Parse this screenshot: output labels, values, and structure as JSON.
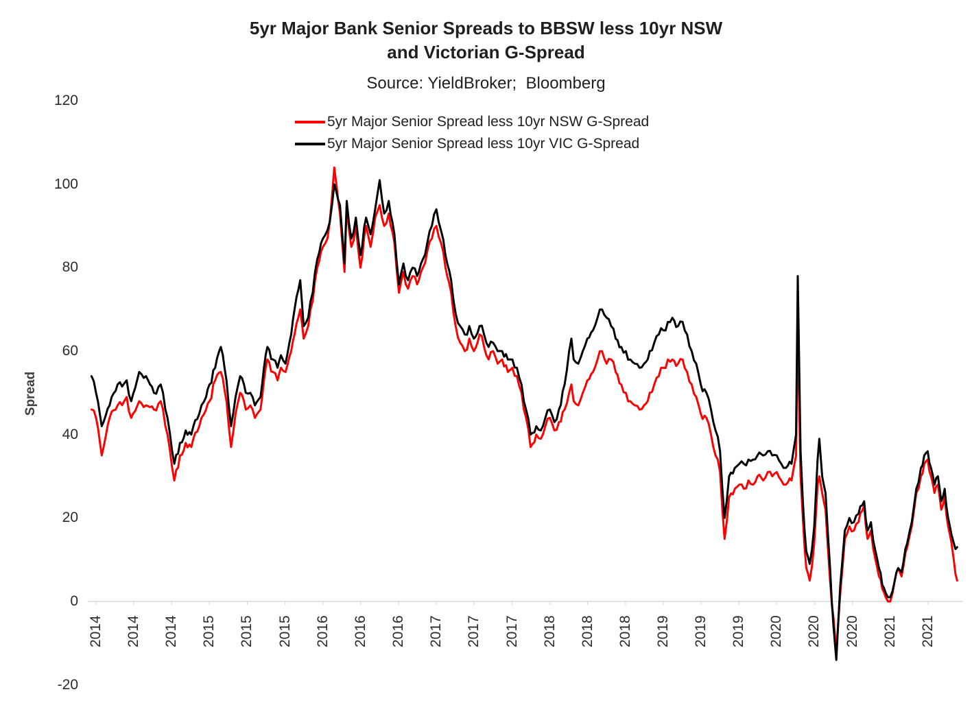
{
  "chart_data": {
    "type": "line",
    "title": "5yr Major Bank Senior Spreads to BBSW less 10yr NSW and Victorian G-Spread",
    "title_lines": [
      "5yr Major Bank Senior Spreads to BBSW less 10yr NSW",
      "and Victorian G-Spread"
    ],
    "subtitle": "Source: YieldBroker;  Bloomberg",
    "ylabel": "Spread",
    "xlabel": "",
    "x_unit": "decimal_year",
    "xlim": [
      2013.96,
      2021.59
    ],
    "ylim": [
      -20,
      120
    ],
    "grid": false,
    "legend_position": "top",
    "y_ticks": [
      120,
      100,
      80,
      60,
      40,
      20,
      0,
      -20
    ],
    "x_tick_labels": [
      "2014",
      "2014",
      "2014",
      "2015",
      "2015",
      "2015",
      "2016",
      "2016",
      "2016",
      "2017",
      "2017",
      "2017",
      "2018",
      "2018",
      "2018",
      "2019",
      "2019",
      "2019",
      "2020",
      "2020",
      "2020",
      "2021",
      "2021"
    ],
    "x_tick_positions": [
      2014.0,
      2014.333,
      2014.667,
      2015.0,
      2015.333,
      2015.667,
      2016.0,
      2016.333,
      2016.667,
      2017.0,
      2017.333,
      2017.667,
      2018.0,
      2018.333,
      2018.667,
      2019.0,
      2019.333,
      2019.667,
      2020.0,
      2020.333,
      2020.667,
      2021.0,
      2021.333
    ],
    "x": [
      2013.96,
      2014.0,
      2014.05,
      2014.12,
      2014.19,
      2014.27,
      2014.31,
      2014.38,
      2014.44,
      2014.51,
      2014.57,
      2014.63,
      2014.69,
      2014.74,
      2014.79,
      2014.84,
      2014.91,
      2014.97,
      2015.0,
      2015.05,
      2015.1,
      2015.15,
      2015.19,
      2015.23,
      2015.27,
      2015.32,
      2015.36,
      2015.4,
      2015.45,
      2015.48,
      2015.51,
      2015.56,
      2015.6,
      2015.63,
      2015.67,
      2015.72,
      2015.75,
      2015.8,
      2015.83,
      2015.87,
      2015.91,
      2015.95,
      2016.0,
      2016.04,
      2016.08,
      2016.1,
      2016.15,
      2016.19,
      2016.21,
      2016.25,
      2016.29,
      2016.33,
      2016.38,
      2016.42,
      2016.46,
      2016.5,
      2016.54,
      2016.58,
      2016.63,
      2016.67,
      2016.71,
      2016.75,
      2016.79,
      2016.83,
      2016.88,
      2016.92,
      2016.96,
      2017.0,
      2017.04,
      2017.08,
      2017.13,
      2017.17,
      2017.21,
      2017.25,
      2017.29,
      2017.33,
      2017.38,
      2017.42,
      2017.46,
      2017.5,
      2017.54,
      2017.58,
      2017.63,
      2017.67,
      2017.71,
      2017.75,
      2017.79,
      2017.83,
      2017.88,
      2017.92,
      2017.96,
      2018.0,
      2018.04,
      2018.08,
      2018.13,
      2018.17,
      2018.19,
      2018.21,
      2018.25,
      2018.29,
      2018.33,
      2018.38,
      2018.42,
      2018.46,
      2018.5,
      2018.54,
      2018.58,
      2018.63,
      2018.67,
      2018.71,
      2018.75,
      2018.79,
      2018.83,
      2018.88,
      2018.92,
      2018.96,
      2019.0,
      2019.04,
      2019.08,
      2019.13,
      2019.17,
      2019.21,
      2019.25,
      2019.29,
      2019.33,
      2019.38,
      2019.42,
      2019.46,
      2019.5,
      2019.54,
      2019.58,
      2019.63,
      2019.67,
      2019.71,
      2019.75,
      2019.79,
      2019.83,
      2019.88,
      2019.92,
      2019.96,
      2020.0,
      2020.04,
      2020.08,
      2020.13,
      2020.17,
      2020.185,
      2020.21,
      2020.23,
      2020.26,
      2020.29,
      2020.33,
      2020.36,
      2020.375,
      2020.4,
      2020.43,
      2020.47,
      2020.5,
      2020.525,
      2020.56,
      2020.6,
      2020.64,
      2020.68,
      2020.72,
      2020.77,
      2020.8,
      2020.83,
      2020.87,
      2020.9,
      2020.93,
      2020.96,
      2021.0,
      2021.04,
      2021.07,
      2021.1,
      2021.15,
      2021.19,
      2021.23,
      2021.27,
      2021.3,
      2021.33,
      2021.36,
      2021.39,
      2021.42,
      2021.45,
      2021.48,
      2021.51,
      2021.54,
      2021.56,
      2021.59
    ],
    "series": [
      {
        "name": "5yr Major Senior Spread less 10yr NSW G-Spread",
        "color": "#ff0000",
        "values": [
          46,
          44,
          35,
          44,
          47,
          49,
          44,
          48,
          47,
          46,
          48,
          40,
          29,
          35,
          38,
          37,
          42,
          46,
          48,
          53,
          55,
          48,
          37,
          45,
          50,
          46,
          47,
          44,
          46,
          53,
          58,
          55,
          53,
          56,
          55,
          60,
          64,
          70,
          63,
          66,
          72,
          80,
          85,
          87,
          97,
          104,
          93,
          79,
          95,
          85,
          90,
          80,
          90,
          85,
          92,
          95,
          90,
          93,
          86,
          74,
          79,
          75,
          78,
          76,
          80,
          84,
          87,
          90,
          86,
          80,
          74,
          66,
          62,
          60,
          63,
          60,
          64,
          61,
          58,
          60,
          57,
          58,
          55,
          56,
          54,
          50,
          44,
          37,
          40,
          39,
          42,
          44,
          41,
          43,
          46,
          50,
          52,
          48,
          47,
          50,
          53,
          55,
          58,
          60,
          57,
          58,
          55,
          52,
          50,
          48,
          47,
          46,
          47,
          50,
          52,
          54,
          56,
          58,
          58,
          57,
          58,
          55,
          52,
          49,
          45,
          44,
          40,
          35,
          31,
          15,
          25,
          27,
          28,
          27,
          29,
          28,
          30,
          29,
          31,
          30,
          31,
          29,
          28,
          29,
          35,
          66,
          30,
          20,
          8,
          5,
          14,
          28,
          30,
          26,
          22,
          5,
          -4,
          -12,
          2,
          15,
          18,
          17,
          19,
          23,
          15,
          17,
          10,
          6,
          3,
          1,
          0,
          5,
          8,
          6,
          13,
          18,
          26,
          30,
          33,
          34,
          30,
          26,
          28,
          22,
          25,
          18,
          14,
          10,
          5
        ]
      },
      {
        "name": "5yr Major Senior Spread less 10yr VIC G-Spread",
        "color": "#000000",
        "values": [
          54,
          50,
          42,
          47,
          52,
          53,
          48,
          55,
          54,
          50,
          52,
          44,
          33,
          38,
          41,
          40,
          45,
          49,
          52,
          56,
          61,
          53,
          42,
          49,
          54,
          50,
          50,
          47,
          49,
          56,
          61,
          58,
          56,
          59,
          57,
          64,
          70,
          77,
          66,
          68,
          74,
          82,
          87,
          89,
          95,
          100,
          95,
          81,
          96,
          87,
          92,
          83,
          92,
          88,
          94,
          101,
          93,
          96,
          88,
          76,
          81,
          77,
          80,
          78,
          82,
          86,
          90,
          94,
          89,
          83,
          77,
          69,
          66,
          64,
          66,
          63,
          66,
          64,
          61,
          62,
          60,
          60,
          58,
          58,
          56,
          52,
          46,
          40,
          42,
          41,
          44,
          46,
          43,
          46,
          52,
          60,
          63,
          58,
          57,
          60,
          63,
          65,
          68,
          70,
          68,
          66,
          63,
          61,
          60,
          58,
          57,
          56,
          57,
          60,
          62,
          64,
          65,
          67,
          68,
          66,
          67,
          64,
          60,
          57,
          52,
          50,
          46,
          41,
          36,
          20,
          30,
          32,
          33,
          33,
          34,
          34,
          35,
          35,
          36,
          35,
          35,
          33,
          32,
          33,
          40,
          78,
          36,
          24,
          12,
          9,
          18,
          34,
          39,
          30,
          26,
          8,
          -6,
          -14,
          4,
          17,
          20,
          19,
          21,
          24,
          17,
          19,
          12,
          8,
          4,
          2,
          1,
          5,
          8,
          7,
          14,
          19,
          27,
          32,
          35,
          36,
          32,
          28,
          30,
          24,
          27,
          20,
          16,
          14,
          13
        ]
      }
    ],
    "axis_color": "#d9d9d9"
  }
}
